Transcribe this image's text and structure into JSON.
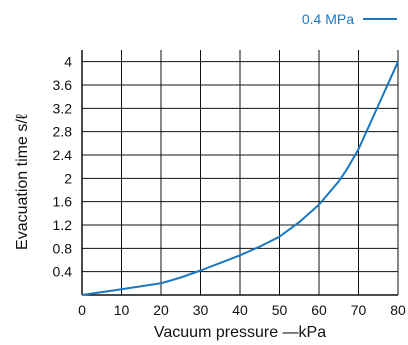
{
  "chart_data": {
    "type": "line",
    "xlabel": "Vacuum pressure —kPa",
    "ylabel": "Evacuation time s/ℓ",
    "xlim": [
      0,
      80
    ],
    "ylim": [
      0,
      4.2
    ],
    "x_ticks": [
      0,
      10,
      20,
      30,
      40,
      50,
      60,
      70,
      80
    ],
    "x_tick_labels": [
      "0",
      "10",
      "20",
      "30",
      "40",
      "50",
      "60",
      "70",
      "80"
    ],
    "y_ticks": [
      0.4,
      0.8,
      1.2,
      1.6,
      2.0,
      2.4,
      2.8,
      3.2,
      3.6,
      4.0
    ],
    "y_tick_labels": [
      "0.4",
      "0.8",
      "1.2",
      "1.6",
      "2",
      "2.4",
      "2.8",
      "3.2",
      "3.6",
      "4"
    ],
    "grid": true,
    "legend_position": "top-right",
    "series": [
      {
        "name": "0.4 MPa",
        "color": "#1a78c2",
        "x": [
          0,
          5,
          10,
          15,
          20,
          25,
          30,
          35,
          40,
          45,
          50,
          55,
          60,
          65,
          67,
          70,
          75,
          80
        ],
        "y": [
          0.0,
          0.05,
          0.1,
          0.15,
          0.2,
          0.3,
          0.42,
          0.55,
          0.68,
          0.83,
          1.0,
          1.25,
          1.55,
          1.95,
          2.15,
          2.5,
          3.25,
          4.0
        ]
      }
    ]
  }
}
